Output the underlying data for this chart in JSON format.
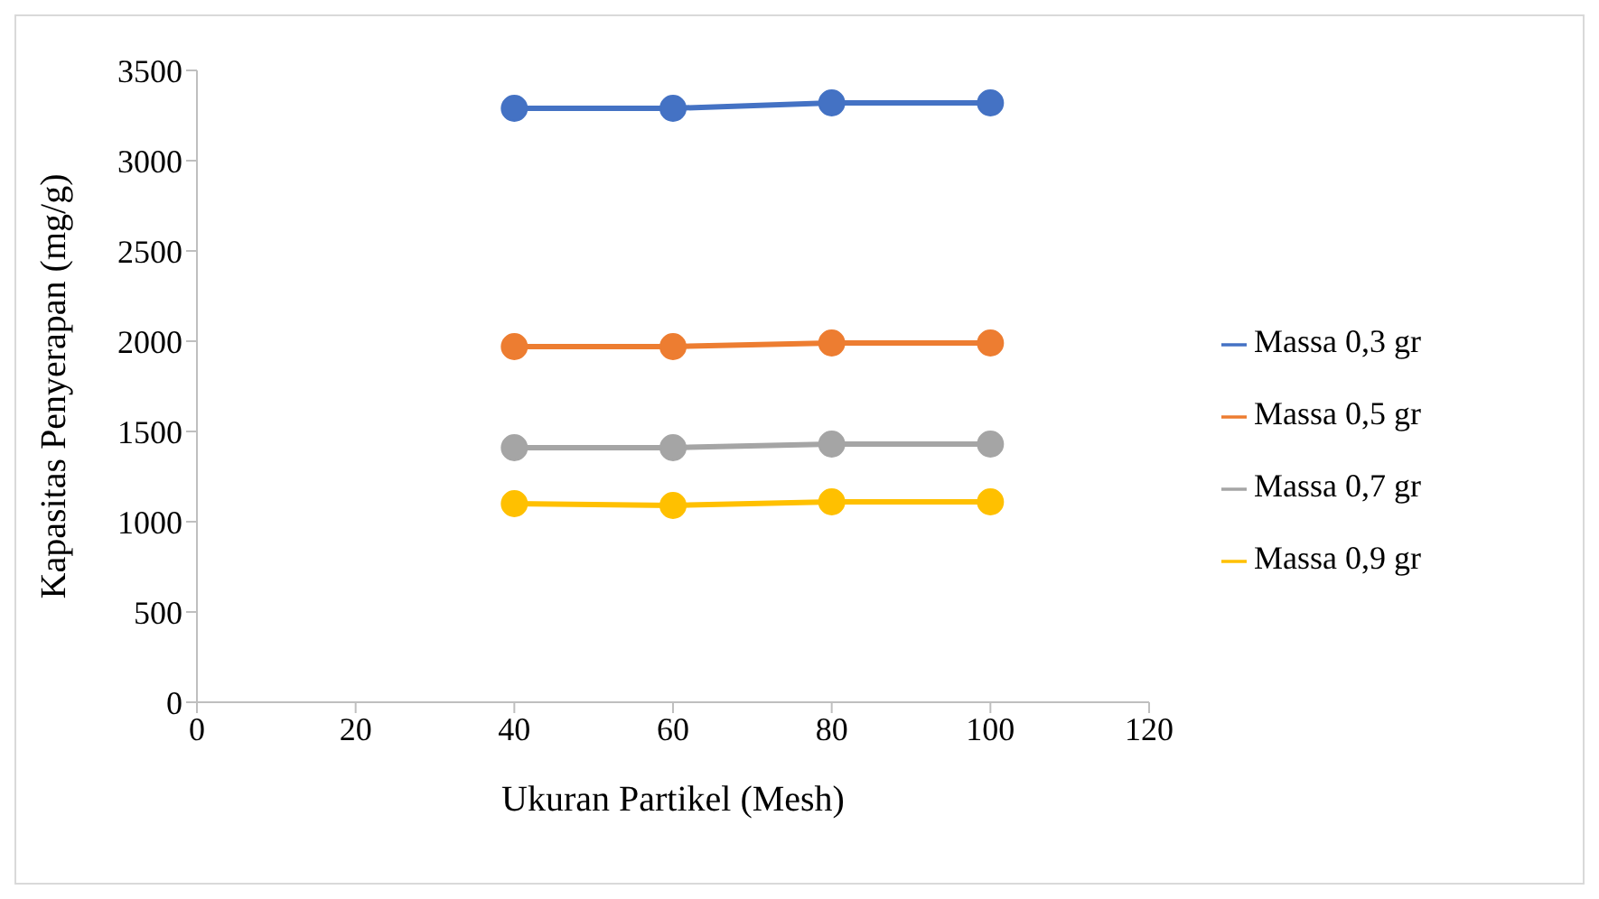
{
  "chart_data": {
    "type": "line",
    "xlabel": "Ukuran Partikel (Mesh)",
    "ylabel": "Kapasitas Penyerapan (mg/g)",
    "x": [
      40,
      60,
      80,
      100
    ],
    "series": [
      {
        "name": "Massa 0,3 gr",
        "color": "#4472c4",
        "values": [
          3290,
          3290,
          3320,
          3320
        ]
      },
      {
        "name": "Massa 0,5 gr",
        "color": "#ed7d31",
        "values": [
          1970,
          1970,
          1990,
          1990
        ]
      },
      {
        "name": "Massa 0,7 gr",
        "color": "#a5a5a5",
        "values": [
          1410,
          1410,
          1430,
          1430
        ]
      },
      {
        "name": "Massa 0,9 gr",
        "color": "#ffc000",
        "values": [
          1100,
          1090,
          1110,
          1110
        ]
      }
    ],
    "xlim": [
      0,
      120
    ],
    "xticks": [
      0,
      20,
      40,
      60,
      80,
      100,
      120
    ],
    "ylim": [
      0,
      3500
    ],
    "yticks": [
      0,
      500,
      1000,
      1500,
      2000,
      2500,
      3000,
      3500
    ],
    "grid": false,
    "legend": "right",
    "marker": "circle",
    "line_style": "solid"
  }
}
